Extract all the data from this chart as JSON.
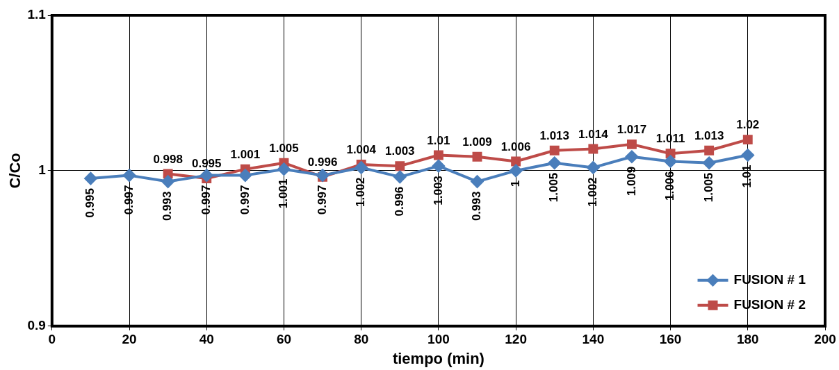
{
  "chart_data": {
    "type": "line",
    "xlabel": "tiempo (min)",
    "ylabel": "C/Co",
    "xlim": [
      0,
      200
    ],
    "xticks": [
      0,
      20,
      40,
      60,
      80,
      100,
      120,
      140,
      160,
      180,
      200
    ],
    "ylim": [
      0.9,
      1.1
    ],
    "yticks": [
      0.9,
      1,
      1.1
    ],
    "grid": true,
    "legend": "bottom right",
    "data_labels": true,
    "line_style": "solid",
    "series": [
      {
        "name": "FUSION # 1",
        "color": "#4a7ebb",
        "marker": "diamond",
        "x": [
          10,
          20,
          30,
          40,
          50,
          60,
          70,
          80,
          90,
          100,
          110,
          120,
          130,
          140,
          150,
          160,
          170,
          180
        ],
        "values": [
          0.995,
          0.997,
          0.993,
          0.997,
          0.997,
          1.001,
          0.997,
          1.002,
          0.996,
          1.003,
          0.993,
          1,
          1.005,
          1.002,
          1.009,
          1.006,
          1.005,
          1.01
        ]
      },
      {
        "name": "FUSION # 2",
        "color": "#be4b48",
        "marker": "square",
        "x": [
          30,
          40,
          50,
          60,
          70,
          80,
          90,
          100,
          110,
          120,
          130,
          140,
          150,
          160,
          170,
          180
        ],
        "values": [
          0.998,
          0.995,
          1.001,
          1.005,
          0.996,
          1.004,
          1.003,
          1.01,
          1.009,
          1.006,
          1.013,
          1.014,
          1.017,
          1.011,
          1.013,
          1.02
        ]
      }
    ]
  }
}
